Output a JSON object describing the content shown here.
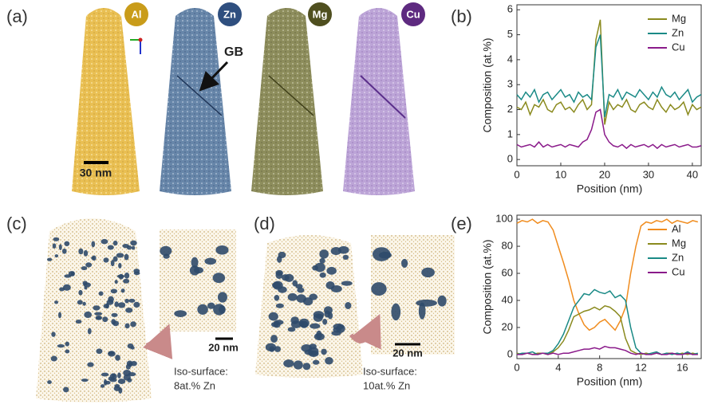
{
  "panels": {
    "a": {
      "label": "(a)",
      "elements": [
        "Al",
        "Zn",
        "Mg",
        "Cu"
      ],
      "gb_label": "GB",
      "scale_bar": "30 nm"
    },
    "c": {
      "label": "(c)",
      "scale_bar": "20 nm",
      "iso_title": "Iso-surface:",
      "iso_value": "8at.% Zn"
    },
    "d": {
      "label": "(d)",
      "scale_bar": "20 nm",
      "iso_title": "Iso-surface:",
      "iso_value": "10at.% Zn"
    }
  },
  "chart_data": [
    {
      "type": "line",
      "panel_label": "(b)",
      "xlabel": "Position (nm)",
      "ylabel": "Composition (at.%)",
      "x": [
        0,
        1,
        2,
        3,
        4,
        5,
        6,
        7,
        8,
        9,
        10,
        11,
        12,
        13,
        14,
        15,
        16,
        17,
        18,
        19,
        20,
        21,
        22,
        23,
        24,
        25,
        26,
        27,
        28,
        29,
        30,
        31,
        32,
        33,
        34,
        35,
        36,
        37,
        38,
        39,
        40,
        41,
        42
      ],
      "xlim": [
        0,
        42.2
      ],
      "xticks": [
        0,
        10,
        20,
        30,
        40
      ],
      "ylim": [
        -0.25,
        6.2
      ],
      "yticks": [
        0,
        1,
        2,
        3,
        4,
        5,
        6
      ],
      "legend": "upper right",
      "series": [
        {
          "name": "Mg",
          "color": "#8a8a1e",
          "values": [
            2.1,
            2.0,
            2.3,
            1.8,
            2.2,
            2.1,
            2.4,
            2.0,
            1.9,
            2.2,
            2.3,
            2.0,
            2.1,
            1.9,
            2.2,
            2.4,
            2.0,
            2.2,
            4.8,
            5.6,
            1.4,
            2.3,
            2.0,
            2.2,
            2.1,
            2.4,
            2.0,
            1.9,
            2.2,
            2.3,
            2.1,
            2.0,
            2.4,
            2.1,
            1.9,
            2.2,
            2.0,
            2.1,
            2.3,
            1.8,
            2.2,
            2.0,
            2.1
          ]
        },
        {
          "name": "Zn",
          "color": "#1a8a86",
          "values": [
            2.6,
            2.4,
            2.7,
            2.5,
            2.8,
            2.3,
            2.6,
            2.7,
            2.4,
            2.6,
            2.8,
            2.5,
            2.6,
            2.3,
            2.7,
            2.5,
            2.6,
            2.4,
            4.5,
            5.0,
            1.7,
            2.6,
            2.5,
            2.8,
            2.4,
            2.7,
            2.6,
            2.5,
            2.8,
            2.6,
            2.4,
            2.7,
            2.5,
            2.9,
            2.6,
            2.5,
            2.7,
            2.4,
            2.6,
            2.8,
            2.3,
            2.5,
            2.6
          ]
        },
        {
          "name": "Cu",
          "color": "#8a1a8a",
          "values": [
            0.6,
            0.5,
            0.55,
            0.6,
            0.5,
            0.7,
            0.5,
            0.6,
            0.5,
            0.55,
            0.6,
            0.5,
            0.6,
            0.55,
            0.5,
            0.7,
            0.8,
            1.2,
            1.9,
            2.0,
            1.0,
            0.7,
            0.55,
            0.5,
            0.6,
            0.45,
            0.6,
            0.5,
            0.55,
            0.6,
            0.5,
            0.6,
            0.45,
            0.6,
            0.5,
            0.55,
            0.6,
            0.5,
            0.55,
            0.6,
            0.5,
            0.5,
            0.55
          ]
        }
      ]
    },
    {
      "type": "line",
      "panel_label": "(e)",
      "xlabel": "Position (nm)",
      "ylabel": "Composition (at.%)",
      "x": [
        0,
        0.5,
        1,
        1.5,
        2,
        2.5,
        3,
        3.5,
        4,
        4.5,
        5,
        5.5,
        6,
        6.5,
        7,
        7.5,
        8,
        8.5,
        9,
        9.5,
        10,
        10.5,
        11,
        11.5,
        12,
        12.5,
        13,
        13.5,
        14,
        14.5,
        15,
        15.5,
        16,
        16.5,
        17,
        17.5
      ],
      "xlim": [
        0,
        17.9
      ],
      "xticks": [
        0,
        4,
        8,
        12,
        16
      ],
      "ylim": [
        -3,
        103
      ],
      "yticks": [
        0,
        20,
        40,
        60,
        80,
        100
      ],
      "legend": "upper right",
      "series": [
        {
          "name": "Al",
          "color": "#f08c1e",
          "values": [
            97,
            99,
            98,
            100,
            97,
            99,
            98,
            92,
            80,
            68,
            55,
            40,
            30,
            22,
            18,
            20,
            24,
            26,
            22,
            18,
            25,
            35,
            60,
            80,
            95,
            98,
            97,
            99,
            98,
            100,
            97,
            99,
            98,
            97,
            99,
            98
          ]
        },
        {
          "name": "Mg",
          "color": "#8a8a1e",
          "values": [
            1,
            0,
            1,
            0,
            1,
            1,
            0,
            2,
            5,
            10,
            18,
            28,
            30,
            32,
            33,
            35,
            33,
            36,
            35,
            32,
            28,
            12,
            3,
            1,
            0,
            1,
            0,
            1,
            0,
            1,
            1,
            0,
            1,
            0,
            1,
            0
          ]
        },
        {
          "name": "Zn",
          "color": "#1a8a86",
          "values": [
            0,
            1,
            1,
            2,
            0,
            1,
            1,
            3,
            8,
            15,
            25,
            35,
            40,
            45,
            44,
            48,
            46,
            45,
            47,
            42,
            44,
            40,
            20,
            5,
            1,
            0,
            1,
            2,
            0,
            1,
            0,
            1,
            0,
            2,
            0,
            1
          ]
        },
        {
          "name": "Cu",
          "color": "#8a1a8a",
          "values": [
            0,
            0,
            1,
            0,
            0,
            1,
            0,
            1,
            0,
            1,
            1,
            2,
            3,
            4,
            4,
            5,
            4,
            6,
            5,
            5,
            4,
            3,
            1,
            0,
            1,
            0,
            0,
            1,
            0,
            0,
            1,
            0,
            0,
            1,
            0,
            0
          ]
        }
      ]
    }
  ]
}
